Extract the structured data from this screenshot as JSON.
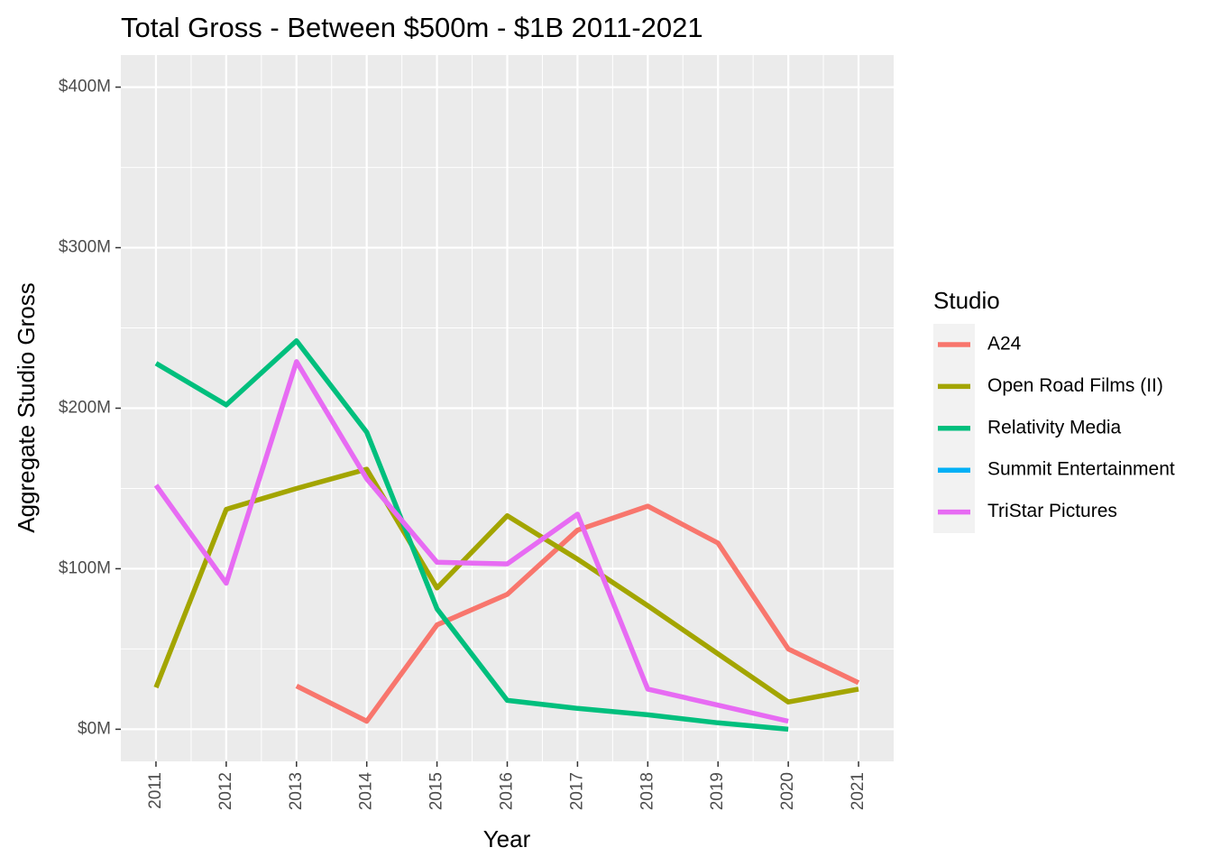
{
  "chart_data": {
    "type": "line",
    "title": "Total Gross - Between $500m - $1B 2011-2021",
    "xlabel": "Year",
    "ylabel": "Aggregate Studio Gross",
    "xlim": [
      2010.5,
      2021.5
    ],
    "ylim": [
      -20,
      420
    ],
    "x_ticks": [
      2011,
      2012,
      2013,
      2014,
      2015,
      2016,
      2017,
      2018,
      2019,
      2020,
      2021
    ],
    "x_tick_labels": [
      "2011",
      "2012",
      "2013",
      "2014",
      "2015",
      "2016",
      "2017",
      "2018",
      "2019",
      "2020",
      "2021"
    ],
    "y_ticks": [
      0,
      100,
      200,
      300,
      400
    ],
    "y_tick_labels": [
      "$0M",
      "$100M",
      "$200M",
      "$300M",
      "$400M"
    ],
    "grid": true,
    "legend": {
      "title": "Studio",
      "position": "right"
    },
    "series": [
      {
        "name": "A24",
        "color": "#F8766D",
        "x": [
          2013,
          2014,
          2015,
          2016,
          2017,
          2018,
          2019,
          2020,
          2021
        ],
        "values": [
          27,
          5,
          65,
          84,
          124,
          139,
          116,
          50,
          29
        ]
      },
      {
        "name": "Open Road Films (II)",
        "color": "#A3A500",
        "x": [
          2011,
          2012,
          2013,
          2014,
          2015,
          2016,
          2017,
          2018,
          2019,
          2020,
          2021
        ],
        "values": [
          26,
          137,
          150,
          162,
          88,
          133,
          106,
          77,
          47,
          17,
          25
        ]
      },
      {
        "name": "Relativity Media",
        "color": "#00BF7D",
        "x": [
          2011,
          2012,
          2013,
          2014,
          2015,
          2016,
          2017,
          2018,
          2019,
          2020
        ],
        "values": [
          228,
          202,
          242,
          185,
          75,
          18,
          13,
          9,
          4,
          0
        ]
      },
      {
        "name": "Summit Entertainment",
        "color": "#00B0F6",
        "x": [],
        "values": []
      },
      {
        "name": "TriStar Pictures",
        "color": "#E76BF3",
        "x": [
          2011,
          2012,
          2013,
          2014,
          2015,
          2016,
          2017,
          2018,
          2019,
          2020
        ],
        "values": [
          152,
          91,
          229,
          156,
          104,
          103,
          134,
          25,
          15,
          5
        ]
      }
    ]
  }
}
